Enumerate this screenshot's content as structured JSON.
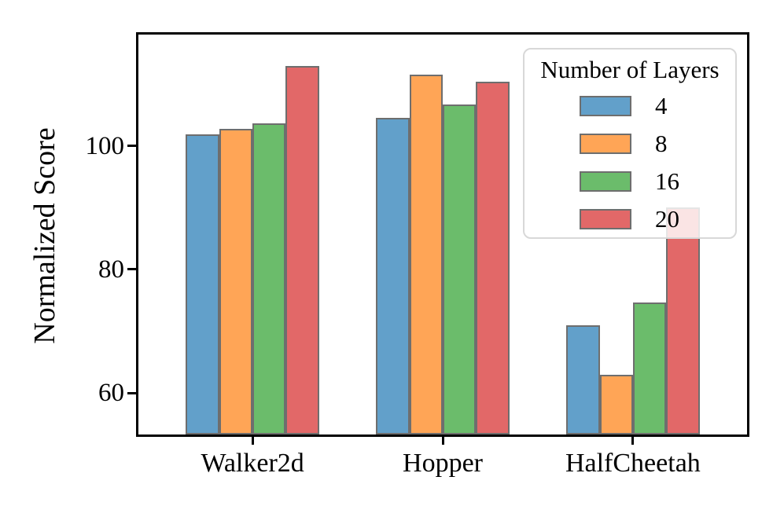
{
  "chart_data": {
    "type": "bar",
    "title": "",
    "xlabel": "",
    "ylabel": "Normalized Score",
    "categories": [
      "Walker2d",
      "Hopper",
      "HalfCheetah"
    ],
    "series": [
      {
        "name": "4",
        "color": "#62A0CA",
        "values": [
          101.8,
          104.5,
          71.0
        ]
      },
      {
        "name": "8",
        "color": "#FFA556",
        "values": [
          102.7,
          111.5,
          63.0
        ]
      },
      {
        "name": "16",
        "color": "#6BBC6B",
        "values": [
          103.7,
          106.7,
          74.6
        ]
      },
      {
        "name": "20",
        "color": "#E26868",
        "values": [
          112.9,
          110.4,
          90.1
        ]
      }
    ],
    "yticks": [
      60,
      80,
      100
    ],
    "ylim": [
      53.3,
      118.0
    ],
    "xlim": [
      -0.6,
      2.6
    ],
    "bar_width": 0.175,
    "bar_edge_color": "#6E6E6E",
    "axis_color": "#000000",
    "grid": false,
    "legend": {
      "title": "Number of Layers",
      "position": "upper right"
    }
  }
}
